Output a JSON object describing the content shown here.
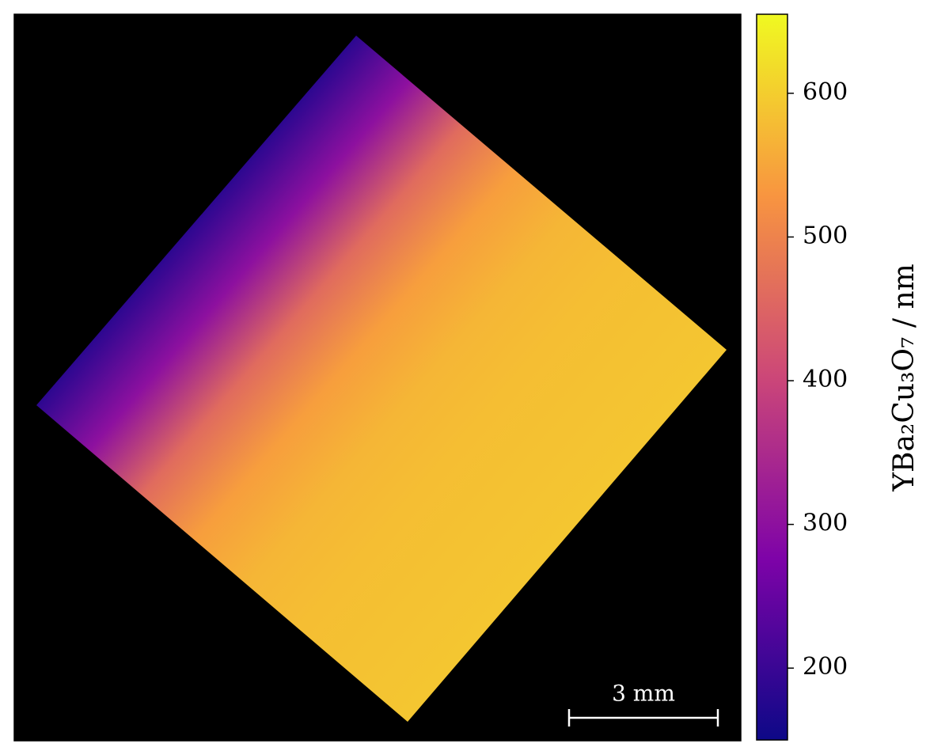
{
  "chart_data": {
    "type": "heatmap",
    "colormap": "plasma",
    "background": "#000000",
    "clim": [
      150,
      655
    ],
    "cticks": [
      200,
      300,
      400,
      500,
      600
    ],
    "colorbar_label": "YBa₂Cu₃O₇ / nm",
    "scale_bar_label": "3 mm",
    "values": [
      185,
      300,
      460,
      540,
      570,
      580,
      585,
      590
    ]
  }
}
